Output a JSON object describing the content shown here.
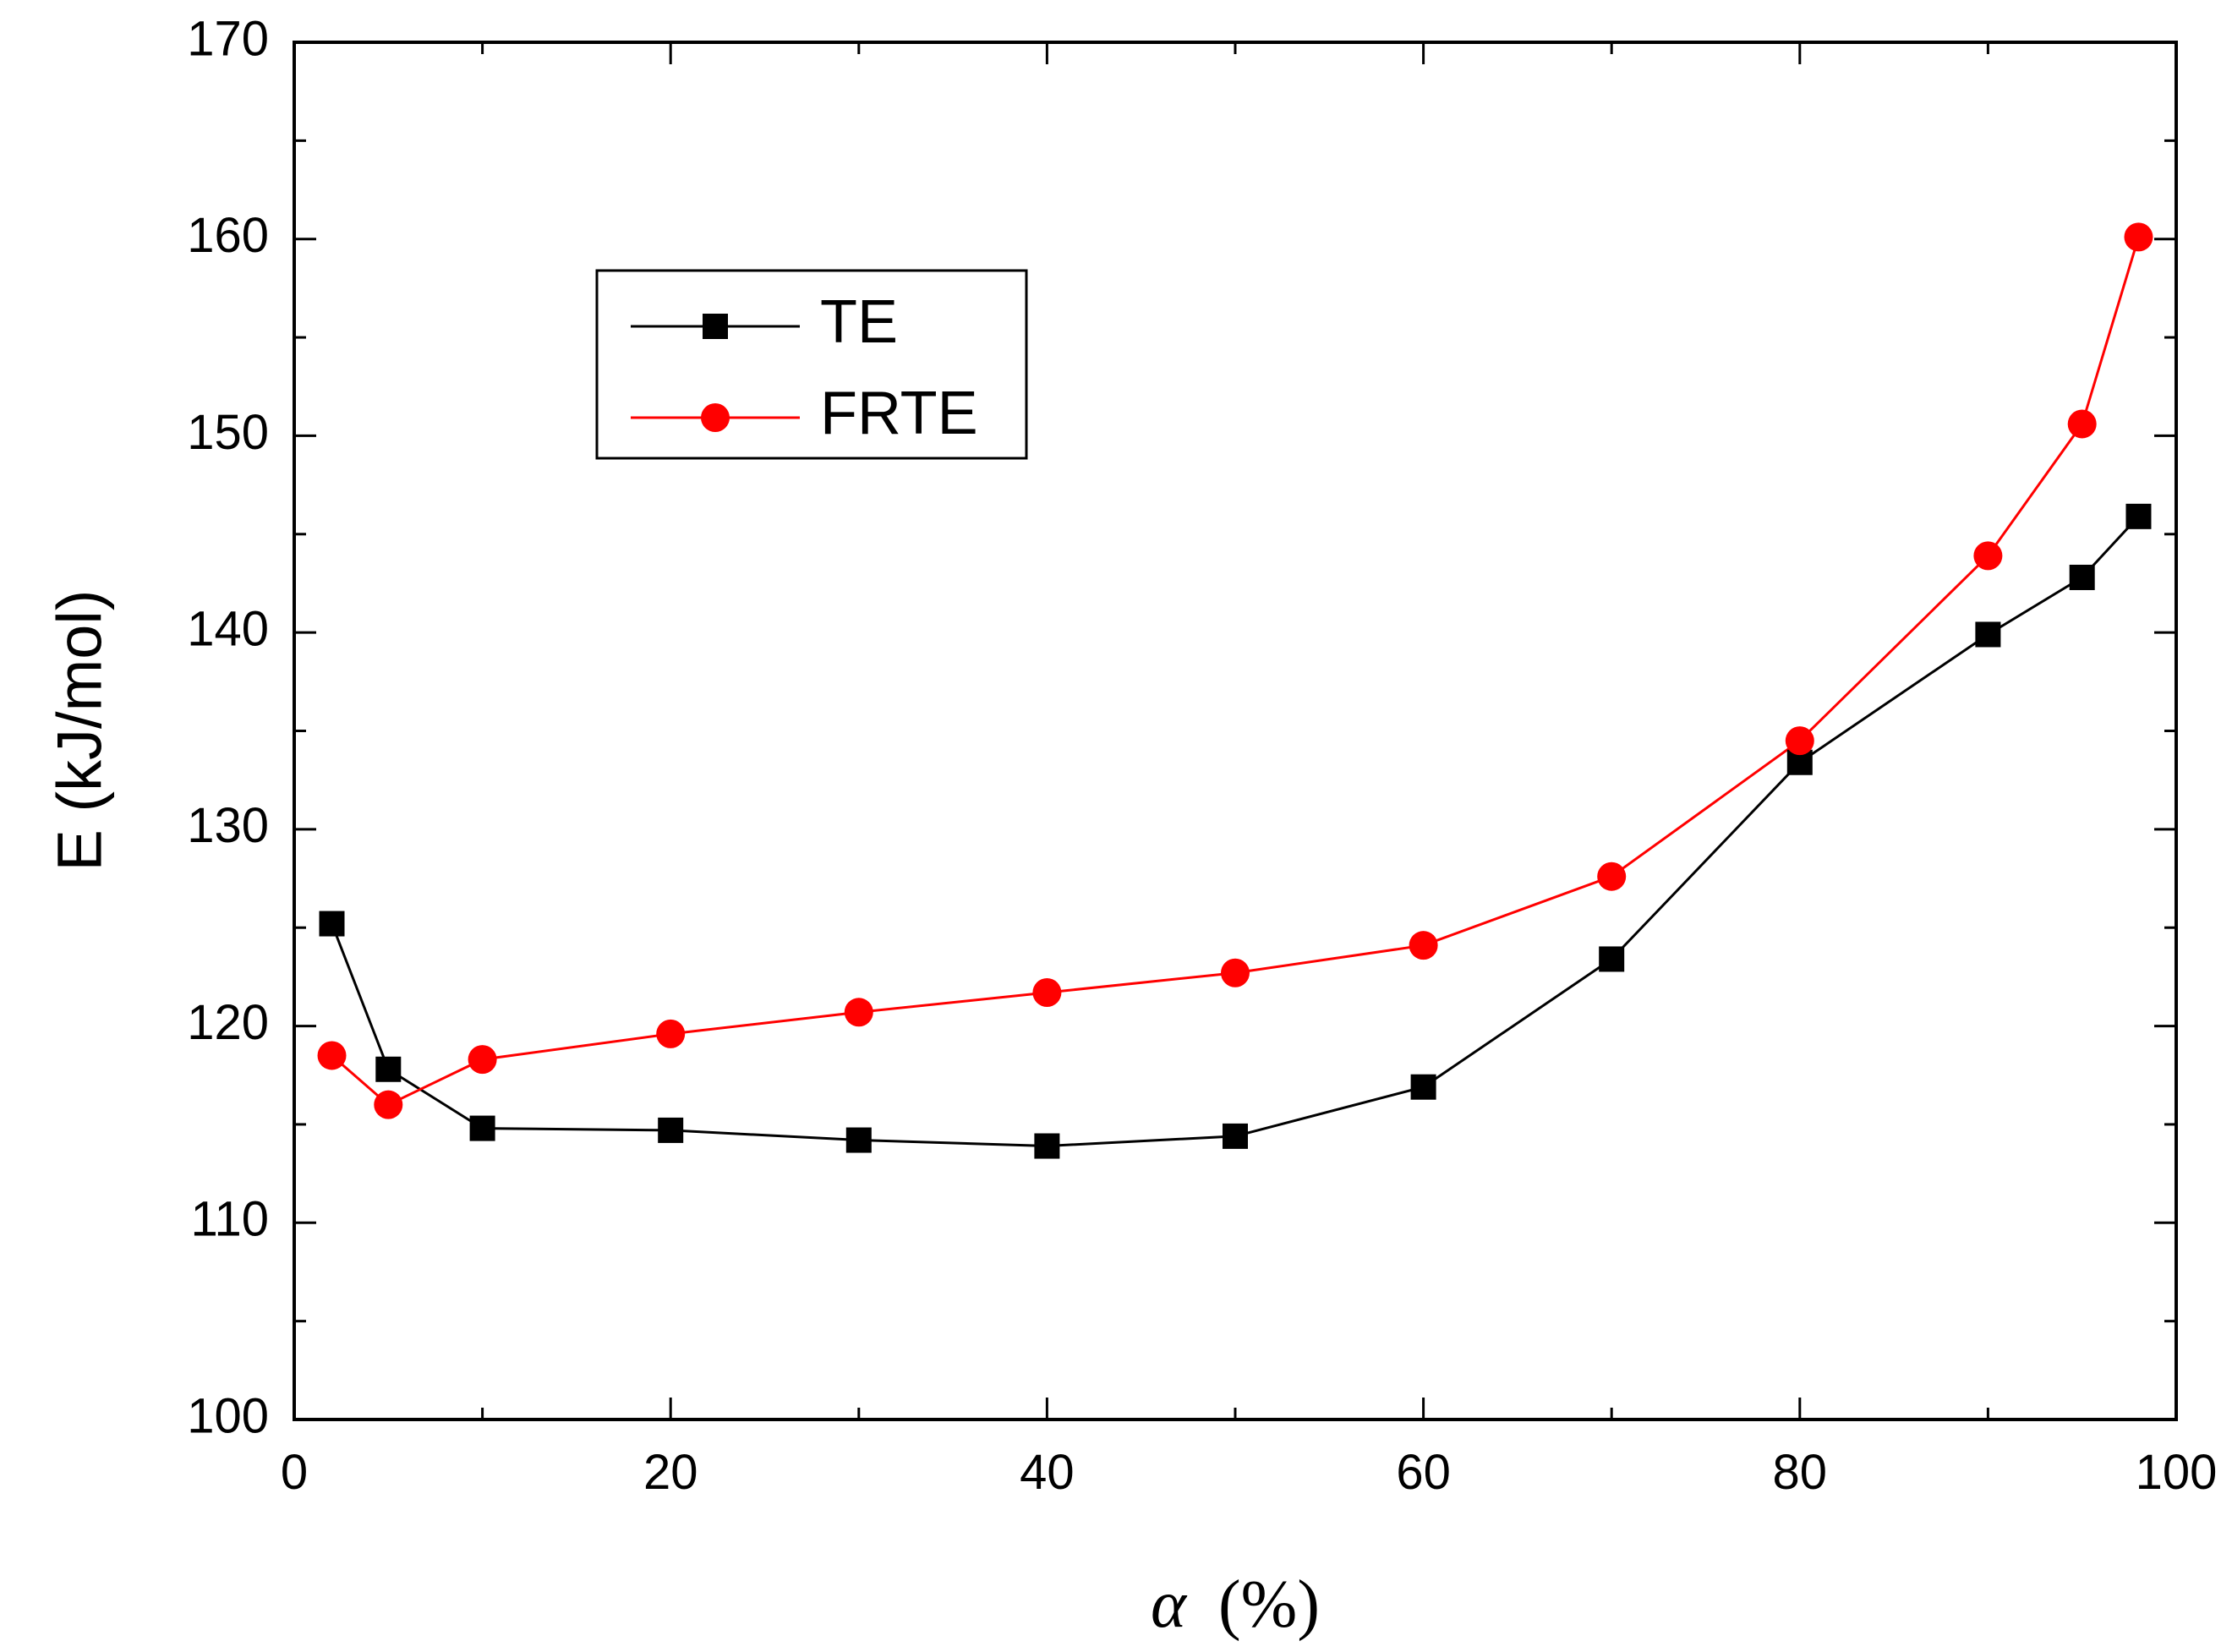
{
  "chart_data": {
    "type": "line",
    "title": "",
    "xlabel_symbol": "α",
    "xlabel_unit": "(%)",
    "ylabel": "E (kJ/mol)",
    "xlim": [
      0,
      100
    ],
    "ylim": [
      100,
      170
    ],
    "xticks": [
      0,
      20,
      40,
      60,
      80,
      100
    ],
    "yticks": [
      100,
      110,
      120,
      130,
      140,
      150,
      160,
      170
    ],
    "xtick_labels": [
      "0",
      "20",
      "40",
      "60",
      "80",
      "100"
    ],
    "ytick_labels": [
      "100",
      "110",
      "120",
      "130",
      "140",
      "150",
      "160",
      "170"
    ],
    "grid": false,
    "legend_position": "upper-left",
    "series": [
      {
        "name": "TE",
        "marker": "square",
        "line_color": "#000000",
        "marker_color": "#000000",
        "x": [
          2,
          5,
          10,
          20,
          30,
          40,
          50,
          60,
          70,
          80,
          90,
          95,
          98
        ],
        "y": [
          125.2,
          117.8,
          114.8,
          114.7,
          114.2,
          113.9,
          114.4,
          116.9,
          123.4,
          133.4,
          139.9,
          142.8,
          145.9
        ]
      },
      {
        "name": "FRTE",
        "marker": "circle",
        "line_color": "#ff0000",
        "marker_color": "#ff0000",
        "x": [
          2,
          5,
          10,
          20,
          30,
          40,
          50,
          60,
          70,
          80,
          90,
          95,
          98
        ],
        "y": [
          118.5,
          116.0,
          118.3,
          119.6,
          120.7,
          121.7,
          122.7,
          124.1,
          127.6,
          134.5,
          143.9,
          150.6,
          160.1
        ]
      }
    ]
  }
}
